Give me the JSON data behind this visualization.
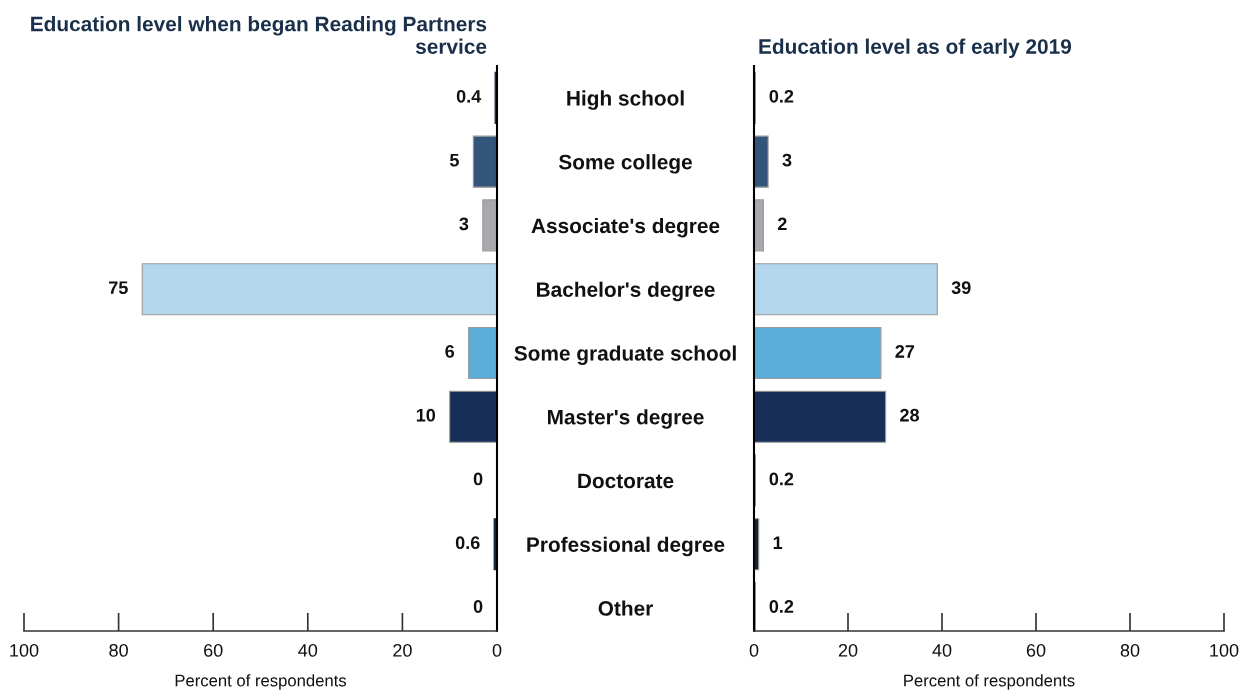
{
  "chart_data": [
    {
      "type": "bar",
      "orientation": "horizontal",
      "title": "Education level when began Reading Partners service",
      "xlabel": "Percent of respondents",
      "categories": [
        "High school",
        "Some college",
        "Associate's degree",
        "Bachelor's degree",
        "Some graduate school",
        "Master's degree",
        "Doctorate",
        "Professional degree",
        "Other"
      ],
      "values": [
        0.4,
        5,
        3,
        75,
        6,
        10,
        0,
        0.6,
        0
      ],
      "colors": [
        "#1b2a41",
        "#34557a",
        "#a7a9ac",
        "#b3d6ec",
        "#5aaed8",
        "#172f57",
        "#1b2a41",
        "#15233a",
        "#1b2a41"
      ],
      "xlim": [
        100,
        0
      ],
      "xticks": [
        100,
        80,
        60,
        40,
        20,
        0
      ],
      "data_labels": true,
      "tick_labels": "x"
    },
    {
      "type": "bar",
      "orientation": "horizontal",
      "title": "Education level as of early 2019",
      "xlabel": "Percent of respondents",
      "categories": [
        "High school",
        "Some college",
        "Associate's degree",
        "Bachelor's degree",
        "Some graduate school",
        "Master's degree",
        "Doctorate",
        "Professional degree",
        "Other"
      ],
      "values": [
        0.2,
        3,
        2,
        39,
        27,
        28,
        0.2,
        1,
        0.2
      ],
      "colors": [
        "#1b2a41",
        "#34557a",
        "#a7a9ac",
        "#b3d6ec",
        "#5aaed8",
        "#172f57",
        "#1b2a41",
        "#15233a",
        "#1b2a41"
      ],
      "xlim": [
        0,
        100
      ],
      "xticks": [
        0,
        20,
        40,
        60,
        80,
        100
      ],
      "data_labels": true
    }
  ]
}
